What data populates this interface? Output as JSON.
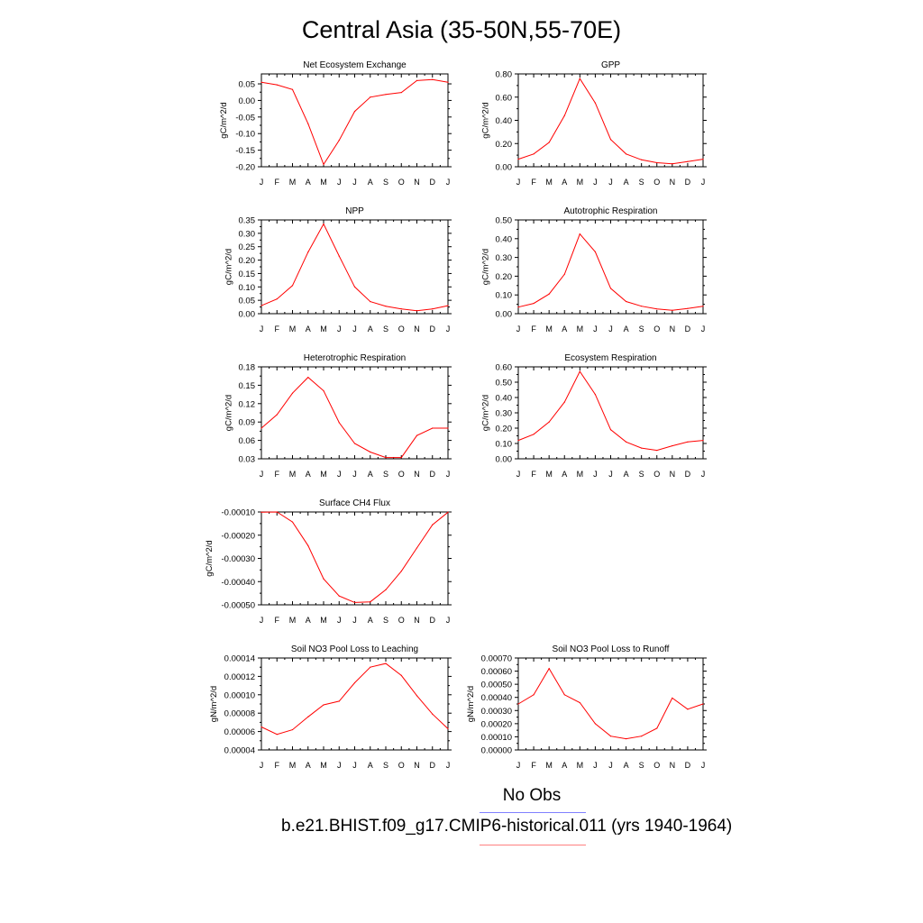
{
  "title": "Central Asia (35-50N,55-70E)",
  "legend": {
    "obs_label": "No Obs",
    "case_label": "b.e21.BHIST.f09_g17.CMIP6-historical.011 (yrs 1940-1964)",
    "obs_color": "#8080ff",
    "case_color": "#ff8080",
    "line_color": "#ff0000"
  },
  "chart_data": [
    {
      "type": "line",
      "title": "Net Ecosystem Exchange",
      "ylabel": "gC/m^2/d",
      "x": [
        "J",
        "F",
        "M",
        "A",
        "M",
        "J",
        "J",
        "A",
        "S",
        "O",
        "N",
        "D",
        "J"
      ],
      "ylim": [
        -0.2,
        0.08
      ],
      "yticks": [
        "0.05",
        "0.00",
        "-0.05",
        "-0.10",
        "-0.15",
        "-0.20"
      ],
      "ytick_values": [
        0.05,
        0.0,
        -0.05,
        -0.1,
        -0.15,
        -0.2
      ],
      "values": [
        0.055,
        0.047,
        0.033,
        -0.07,
        -0.193,
        -0.12,
        -0.033,
        0.01,
        0.018,
        0.024,
        0.06,
        0.063,
        0.055
      ]
    },
    {
      "type": "line",
      "title": "GPP",
      "ylabel": "gC/m^2/d",
      "x": [
        "J",
        "F",
        "M",
        "A",
        "M",
        "J",
        "J",
        "A",
        "S",
        "O",
        "N",
        "D",
        "J"
      ],
      "ylim": [
        0.0,
        0.8
      ],
      "yticks": [
        "0.80",
        "0.60",
        "0.40",
        "0.20",
        "0.00"
      ],
      "ytick_values": [
        0.8,
        0.6,
        0.4,
        0.2,
        0.0
      ],
      "values": [
        0.065,
        0.11,
        0.21,
        0.44,
        0.76,
        0.55,
        0.235,
        0.11,
        0.06,
        0.035,
        0.025,
        0.045,
        0.065
      ]
    },
    {
      "type": "line",
      "title": "NPP",
      "ylabel": "gC/m^2/d",
      "x": [
        "J",
        "F",
        "M",
        "A",
        "M",
        "J",
        "J",
        "A",
        "S",
        "O",
        "N",
        "D",
        "J"
      ],
      "ylim": [
        0.0,
        0.35
      ],
      "yticks": [
        "0.35",
        "0.30",
        "0.25",
        "0.20",
        "0.15",
        "0.10",
        "0.05",
        "0.00"
      ],
      "ytick_values": [
        0.35,
        0.3,
        0.25,
        0.2,
        0.15,
        0.1,
        0.05,
        0.0
      ],
      "values": [
        0.03,
        0.055,
        0.105,
        0.23,
        0.335,
        0.215,
        0.1,
        0.045,
        0.028,
        0.018,
        0.011,
        0.018,
        0.03
      ]
    },
    {
      "type": "line",
      "title": "Autotrophic Respiration",
      "ylabel": "gC/m^2/d",
      "x": [
        "J",
        "F",
        "M",
        "A",
        "M",
        "J",
        "J",
        "A",
        "S",
        "O",
        "N",
        "D",
        "J"
      ],
      "ylim": [
        0.0,
        0.5
      ],
      "yticks": [
        "0.50",
        "0.40",
        "0.30",
        "0.20",
        "0.10",
        "0.00"
      ],
      "ytick_values": [
        0.5,
        0.4,
        0.3,
        0.2,
        0.1,
        0.0
      ],
      "values": [
        0.035,
        0.055,
        0.105,
        0.21,
        0.425,
        0.33,
        0.135,
        0.065,
        0.04,
        0.025,
        0.018,
        0.028,
        0.04
      ]
    },
    {
      "type": "line",
      "title": "Heterotrophic Respiration",
      "ylabel": "gC/m^2/d",
      "x": [
        "J",
        "F",
        "M",
        "A",
        "M",
        "J",
        "J",
        "A",
        "S",
        "O",
        "N",
        "D",
        "J"
      ],
      "ylim": [
        0.03,
        0.18
      ],
      "yticks": [
        "0.18",
        "0.15",
        "0.12",
        "0.09",
        "0.06",
        "0.03"
      ],
      "ytick_values": [
        0.18,
        0.15,
        0.12,
        0.09,
        0.06,
        0.03
      ],
      "values": [
        0.08,
        0.102,
        0.137,
        0.163,
        0.141,
        0.089,
        0.055,
        0.041,
        0.032,
        0.032,
        0.068,
        0.08,
        0.08
      ]
    },
    {
      "type": "line",
      "title": "Ecosystem Respiration",
      "ylabel": "gC/m^2/d",
      "x": [
        "J",
        "F",
        "M",
        "A",
        "M",
        "J",
        "J",
        "A",
        "S",
        "O",
        "N",
        "D",
        "J"
      ],
      "ylim": [
        0.0,
        0.6
      ],
      "yticks": [
        "0.60",
        "0.50",
        "0.40",
        "0.30",
        "0.20",
        "0.10",
        "0.00"
      ],
      "ytick_values": [
        0.6,
        0.5,
        0.4,
        0.3,
        0.2,
        0.1,
        0.0
      ],
      "values": [
        0.12,
        0.16,
        0.24,
        0.37,
        0.57,
        0.42,
        0.19,
        0.11,
        0.07,
        0.055,
        0.085,
        0.11,
        0.12
      ]
    },
    {
      "type": "line",
      "title": "Surface CH4 Flux",
      "ylabel": "gC/m^2/d",
      "x": [
        "J",
        "F",
        "M",
        "A",
        "M",
        "J",
        "J",
        "A",
        "S",
        "O",
        "N",
        "D",
        "J"
      ],
      "ylim": [
        -0.0005,
        -0.0001
      ],
      "yticks": [
        "-0.00010",
        "-0.00020",
        "-0.00030",
        "-0.00040",
        "-0.00050"
      ],
      "ytick_values": [
        -0.0001,
        -0.0002,
        -0.0003,
        -0.0004,
        -0.0005
      ],
      "values": [
        -0.000101,
        -0.0001,
        -0.000143,
        -0.000245,
        -0.000388,
        -0.000462,
        -0.00049,
        -0.000487,
        -0.000435,
        -0.000355,
        -0.000255,
        -0.000155,
        -0.000101
      ]
    },
    {
      "type": "line",
      "title": "Soil NO3 Pool Loss to Leaching",
      "ylabel": "gN/m^2/d",
      "x": [
        "J",
        "F",
        "M",
        "A",
        "M",
        "J",
        "J",
        "A",
        "S",
        "O",
        "N",
        "D",
        "J"
      ],
      "ylim": [
        4e-05,
        0.00014
      ],
      "yticks": [
        "0.00014",
        "0.00012",
        "0.00010",
        "0.00008",
        "0.00006",
        "0.00004"
      ],
      "ytick_values": [
        0.00014,
        0.00012,
        0.0001,
        8e-05,
        6e-05,
        4e-05
      ],
      "values": [
        6.5e-05,
        5.7e-05,
        6.2e-05,
        7.6e-05,
        8.9e-05,
        9.3e-05,
        0.000113,
        0.00013,
        0.000134,
        0.000121,
        9.9e-05,
        7.9e-05,
        6.3e-05
      ]
    },
    {
      "type": "line",
      "title": "Soil NO3 Pool Loss to Runoff",
      "ylabel": "gN/m^2/d",
      "x": [
        "J",
        "F",
        "M",
        "A",
        "M",
        "J",
        "J",
        "A",
        "S",
        "O",
        "N",
        "D",
        "J"
      ],
      "ylim": [
        0.0,
        0.0007
      ],
      "yticks": [
        "0.00070",
        "0.00060",
        "0.00050",
        "0.00040",
        "0.00030",
        "0.00020",
        "0.00010",
        "0.00000"
      ],
      "ytick_values": [
        0.0007,
        0.0006,
        0.0005,
        0.0004,
        0.0003,
        0.0002,
        0.0001,
        0.0
      ],
      "values": [
        0.00035,
        0.00042,
        0.00062,
        0.00042,
        0.00036,
        0.0002,
        0.000105,
        8.5e-05,
        0.000105,
        0.000165,
        0.000395,
        0.00031,
        0.00035
      ]
    }
  ]
}
